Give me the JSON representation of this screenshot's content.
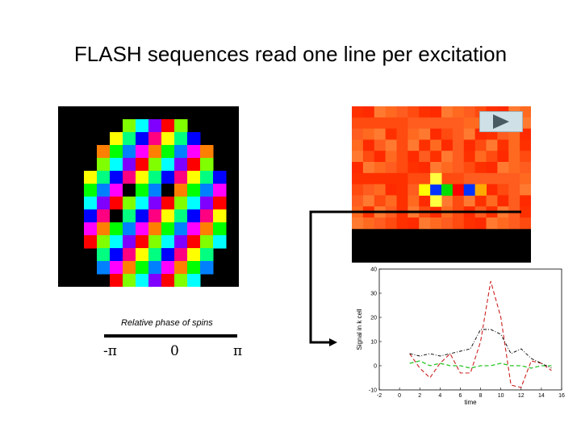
{
  "slide": {
    "title": "FLASH sequences read one line per excitation"
  },
  "phase_legend": {
    "caption": "Relative phase of spins",
    "ticks": [
      "-π",
      "0",
      "π"
    ]
  },
  "colors": {
    "background": "#ffffff",
    "dashed_red": "#cc1f1f",
    "dashed_green": "#27c427",
    "dashed_black": "#000000"
  },
  "phase_image": {
    "rows": [
      [
        0,
        0,
        0,
        0,
        0,
        0,
        0,
        0,
        0,
        0,
        0,
        0,
        0,
        0
      ],
      [
        0,
        0,
        0,
        0,
        0,
        1,
        1,
        1,
        1,
        1,
        0,
        0,
        0,
        0
      ],
      [
        0,
        0,
        0,
        0,
        1,
        1,
        1,
        1,
        1,
        1,
        1,
        0,
        0,
        0
      ],
      [
        0,
        0,
        0,
        1,
        1,
        1,
        1,
        1,
        1,
        1,
        1,
        1,
        0,
        0
      ],
      [
        0,
        0,
        0,
        1,
        1,
        1,
        1,
        1,
        1,
        1,
        1,
        1,
        0,
        0
      ],
      [
        0,
        0,
        1,
        1,
        1,
        1,
        1,
        1,
        1,
        1,
        1,
        1,
        1,
        0
      ],
      [
        0,
        0,
        1,
        1,
        1,
        1,
        1,
        1,
        1,
        1,
        1,
        1,
        1,
        0
      ],
      [
        0,
        0,
        1,
        1,
        1,
        1,
        1,
        1,
        1,
        1,
        1,
        1,
        1,
        0
      ],
      [
        0,
        0,
        1,
        1,
        1,
        1,
        1,
        1,
        1,
        1,
        1,
        1,
        1,
        0
      ],
      [
        0,
        0,
        1,
        1,
        1,
        1,
        1,
        1,
        1,
        1,
        1,
        1,
        1,
        0
      ],
      [
        0,
        0,
        1,
        1,
        1,
        1,
        1,
        1,
        1,
        1,
        1,
        1,
        1,
        0
      ],
      [
        0,
        0,
        0,
        1,
        1,
        1,
        1,
        1,
        1,
        1,
        1,
        1,
        0,
        0
      ],
      [
        0,
        0,
        0,
        1,
        1,
        1,
        1,
        1,
        1,
        1,
        1,
        1,
        0,
        0
      ],
      [
        0,
        0,
        0,
        0,
        1,
        1,
        1,
        1,
        1,
        1,
        1,
        0,
        0,
        0
      ]
    ],
    "palette": [
      "#ff00ff",
      "#ff0080",
      "#ff0000",
      "#ff8000",
      "#ffff00",
      "#80ff00",
      "#00ff00",
      "#00ff80",
      "#00ffff",
      "#0080ff",
      "#0000ff",
      "#8000ff"
    ]
  },
  "kspace_image": {
    "palette": [
      "#ff3000",
      "#ff4a10",
      "#ff5c20",
      "#ff6a20",
      "#ff7a30",
      "#ff2a00"
    ],
    "highlight_row": 7,
    "highlight": [
      {
        "col": 6,
        "color": "#ffff00"
      },
      {
        "col": 7,
        "color": "#0033ff"
      },
      {
        "col": 8,
        "color": "#00dd00"
      },
      {
        "col": 9,
        "color": "#ff0000"
      },
      {
        "col": 10,
        "color": "#0033ff"
      },
      {
        "col": 11,
        "color": "#ffaa00"
      }
    ]
  },
  "chart_data": {
    "type": "line",
    "xlabel": "time",
    "ylabel": "Signal in k cell",
    "xlim": [
      -2,
      16
    ],
    "ylim": [
      -10,
      40
    ],
    "xticks": [
      "-2",
      "0",
      "2",
      "4",
      "6",
      "8",
      "10",
      "12",
      "14",
      "16"
    ],
    "xtick_values": [
      -2,
      0,
      2,
      4,
      6,
      8,
      10,
      12,
      14,
      16
    ],
    "yticks": [
      "-10",
      "0",
      "10",
      "20",
      "30",
      "40"
    ],
    "ytick_values": [
      -10,
      0,
      10,
      20,
      30,
      40
    ],
    "series": [
      {
        "style": "red-dashed",
        "x": [
          1,
          2,
          3,
          4,
          5,
          6,
          7,
          8,
          9,
          10,
          11,
          12,
          13,
          14,
          15
        ],
        "y": [
          5,
          -1,
          -5,
          1,
          5,
          -3,
          -3,
          10,
          35,
          20,
          -8,
          -9,
          2,
          1,
          -2
        ]
      },
      {
        "style": "green-dashed",
        "x": [
          1,
          2,
          3,
          4,
          5,
          6,
          7,
          8,
          9,
          10,
          11,
          12,
          13,
          14,
          15
        ],
        "y": [
          1,
          2,
          0,
          1,
          0,
          0,
          -1,
          0,
          0,
          1,
          0,
          0,
          -1,
          0,
          0
        ]
      },
      {
        "style": "black-dashed",
        "x": [
          1,
          2,
          3,
          4,
          5,
          6,
          7,
          8,
          9,
          10,
          11,
          12,
          13,
          14,
          15
        ],
        "y": [
          5,
          4,
          5,
          4,
          5,
          6,
          7,
          15,
          15,
          13,
          5,
          7,
          3,
          1,
          -1
        ]
      }
    ]
  }
}
